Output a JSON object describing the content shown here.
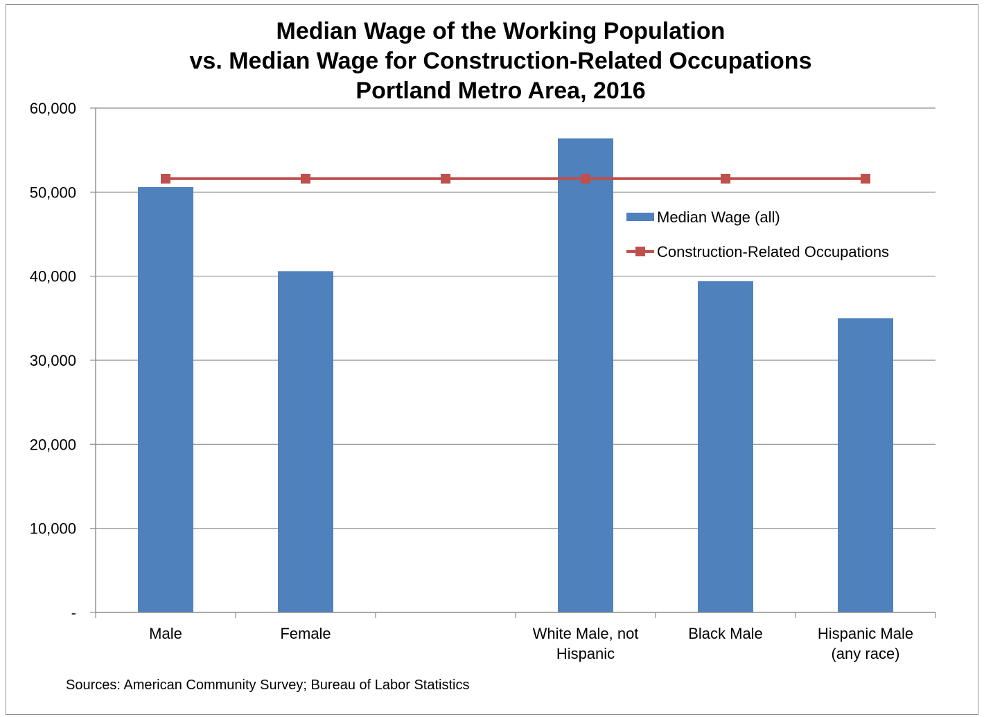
{
  "chart_data": {
    "type": "bar",
    "title_lines": [
      "Median Wage of the Working Population",
      "vs. Median Wage for Construction-Related Occupations",
      "Portland Metro Area, 2016"
    ],
    "categories": [
      [
        "Male"
      ],
      [
        "Female"
      ],
      [
        ""
      ],
      [
        "White Male, not",
        "Hispanic"
      ],
      [
        "Black Male"
      ],
      [
        "Hispanic Male",
        "(any race)"
      ]
    ],
    "series": [
      {
        "name": "Median Wage (all)",
        "type": "bar",
        "color": "#4f81bd",
        "values": [
          50600,
          40600,
          null,
          56400,
          39400,
          35000
        ]
      },
      {
        "name": "Construction-Related Occupations",
        "type": "line",
        "color": "#c0504d",
        "values": [
          51600,
          51600,
          51600,
          51600,
          51600,
          51600
        ]
      }
    ],
    "yticks": [
      "-",
      "10,000",
      "20,000",
      "30,000",
      "40,000",
      "50,000",
      "60,000"
    ],
    "ylim": [
      0,
      60000
    ],
    "grid": true,
    "legend_position": "right, inside plot",
    "source": "Sources: American Community Survey; Bureau of Labor Statistics"
  }
}
